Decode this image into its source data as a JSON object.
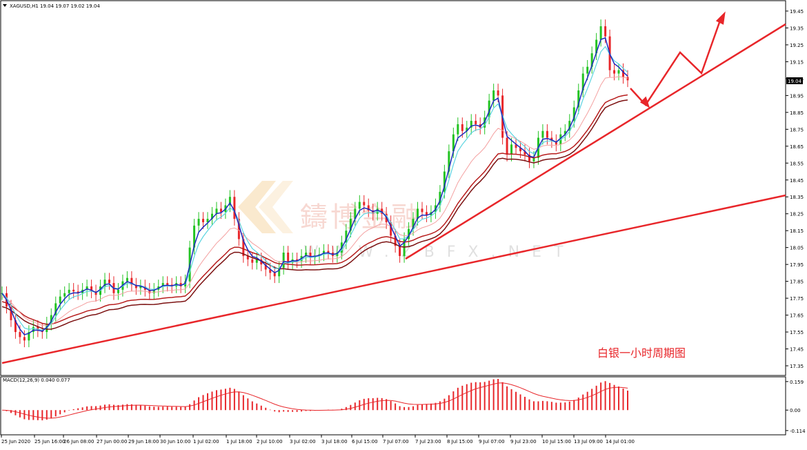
{
  "chart_data": {
    "type": "line",
    "symbol_header": "XAGUSD,H1  19.04 19.07 19.02 19.04",
    "annotation": "白银一小时周期图",
    "watermark": {
      "cn": "鑄博金融",
      "en": "WWW.ZBFX.NET"
    },
    "current_price_label": "19.04",
    "y_ticks": [
      "19.45",
      "19.35",
      "19.25",
      "19.15",
      "19.05",
      "18.95",
      "18.85",
      "18.75",
      "18.65",
      "18.55",
      "18.45",
      "18.35",
      "18.25",
      "18.15",
      "18.05",
      "17.95",
      "17.85",
      "17.75",
      "17.65",
      "17.55",
      "17.45",
      "17.35"
    ],
    "x_ticks": [
      "25 Jun 2020",
      "25 Jun 16:00",
      "26 Jun 08:00",
      "27 Jun 00:00",
      "29 Jun 18:00",
      "30 Jun 10:00",
      "1 Jul 02:00",
      "1 Jul 18:00",
      "2 Jul 10:00",
      "3 Jul 02:00",
      "3 Jul 18:00",
      "6 Jul 15:00",
      "7 Jul 07:00",
      "7 Jul 23:00",
      "8 Jul 15:00",
      "9 Jul 07:00",
      "9 Jul 23:00",
      "10 Jul 15:00",
      "13 Jul 09:00",
      "14 Jul 01:00"
    ],
    "ylim": [
      17.29,
      19.48
    ],
    "price_close": [
      17.78,
      17.7,
      17.62,
      17.55,
      17.52,
      17.5,
      17.55,
      17.58,
      17.56,
      17.55,
      17.6,
      17.65,
      17.72,
      17.76,
      17.78,
      17.8,
      17.79,
      17.78,
      17.8,
      17.82,
      17.79,
      17.77,
      17.82,
      17.86,
      17.84,
      17.78,
      17.8,
      17.85,
      17.87,
      17.83,
      17.81,
      17.82,
      17.8,
      17.78,
      17.8,
      17.82,
      17.84,
      17.83,
      17.82,
      17.84,
      17.82,
      17.85,
      18.05,
      18.18,
      18.22,
      18.2,
      18.22,
      18.25,
      18.28,
      18.26,
      18.3,
      18.35,
      18.22,
      18.1,
      18.0,
      17.98,
      17.96,
      17.98,
      17.95,
      17.92,
      17.9,
      17.88,
      17.93,
      18.02,
      17.96,
      17.98,
      17.97,
      18.0,
      18.02,
      17.99,
      18.0,
      18.01,
      18.03,
      18.02,
      18.0,
      18.02,
      18.08,
      18.15,
      18.22,
      18.28,
      18.32,
      18.3,
      18.27,
      18.25,
      18.28,
      18.25,
      18.2,
      18.12,
      18.06,
      18.0,
      18.1,
      18.16,
      18.22,
      18.28,
      18.26,
      18.24,
      18.26,
      18.3,
      18.38,
      18.5,
      18.62,
      18.72,
      18.78,
      18.74,
      18.76,
      18.8,
      18.78,
      18.76,
      18.82,
      18.92,
      18.98,
      18.95,
      18.7,
      18.6,
      18.66,
      18.64,
      18.62,
      18.6,
      18.56,
      18.58,
      18.7,
      18.74,
      18.7,
      18.68,
      18.66,
      18.72,
      18.74,
      18.8,
      18.88,
      18.98,
      19.08,
      19.12,
      19.2,
      19.28,
      19.36,
      19.3,
      19.1,
      19.08,
      19.1,
      19.06,
      19.04
    ],
    "macd_label": "MACD(12,26,9) 0.040 0.077",
    "macd_ticks": [
      "0.159",
      "0.00",
      "-0.114"
    ],
    "macd_ylim": [
      -0.13,
      0.17
    ]
  }
}
